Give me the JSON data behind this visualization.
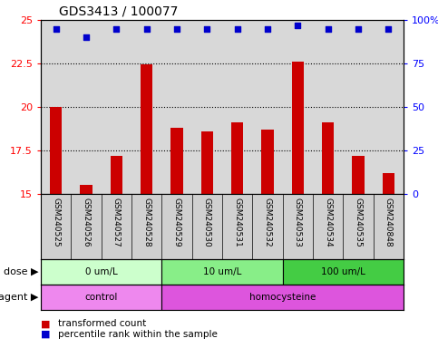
{
  "title": "GDS3413 / 100077",
  "samples": [
    "GSM240525",
    "GSM240526",
    "GSM240527",
    "GSM240528",
    "GSM240529",
    "GSM240530",
    "GSM240531",
    "GSM240532",
    "GSM240533",
    "GSM240534",
    "GSM240535",
    "GSM240848"
  ],
  "bar_values": [
    20.0,
    15.5,
    17.2,
    22.45,
    18.8,
    18.6,
    19.1,
    18.7,
    22.6,
    19.1,
    17.2,
    16.2
  ],
  "percentile_values": [
    95,
    90,
    95,
    95,
    95,
    95,
    95,
    95,
    97,
    95,
    95,
    95
  ],
  "bar_color": "#cc0000",
  "dot_color": "#0000cc",
  "ylim_left": [
    15,
    25
  ],
  "ylim_right": [
    0,
    100
  ],
  "yticks_left": [
    15,
    17.5,
    20,
    22.5,
    25
  ],
  "ytick_labels_left": [
    "15",
    "17.5",
    "20",
    "22.5",
    "25"
  ],
  "yticks_right": [
    0,
    25,
    50,
    75,
    100
  ],
  "ytick_labels_right": [
    "0",
    "25",
    "50",
    "75",
    "100%"
  ],
  "dose_groups": [
    {
      "label": "0 um/L",
      "start": 0,
      "end": 4,
      "color": "#ccffcc"
    },
    {
      "label": "10 um/L",
      "start": 4,
      "end": 8,
      "color": "#88ee88"
    },
    {
      "label": "100 um/L",
      "start": 8,
      "end": 12,
      "color": "#44cc44"
    }
  ],
  "agent_groups": [
    {
      "label": "control",
      "start": 0,
      "end": 4,
      "color": "#ee88ee"
    },
    {
      "label": "homocysteine",
      "start": 4,
      "end": 12,
      "color": "#dd55dd"
    }
  ],
  "legend_bar_label": "transformed count",
  "legend_dot_label": "percentile rank within the sample",
  "dose_label": "dose",
  "agent_label": "agent",
  "sample_bg_color": "#d0d0d0",
  "plot_bg_color": "#d8d8d8"
}
